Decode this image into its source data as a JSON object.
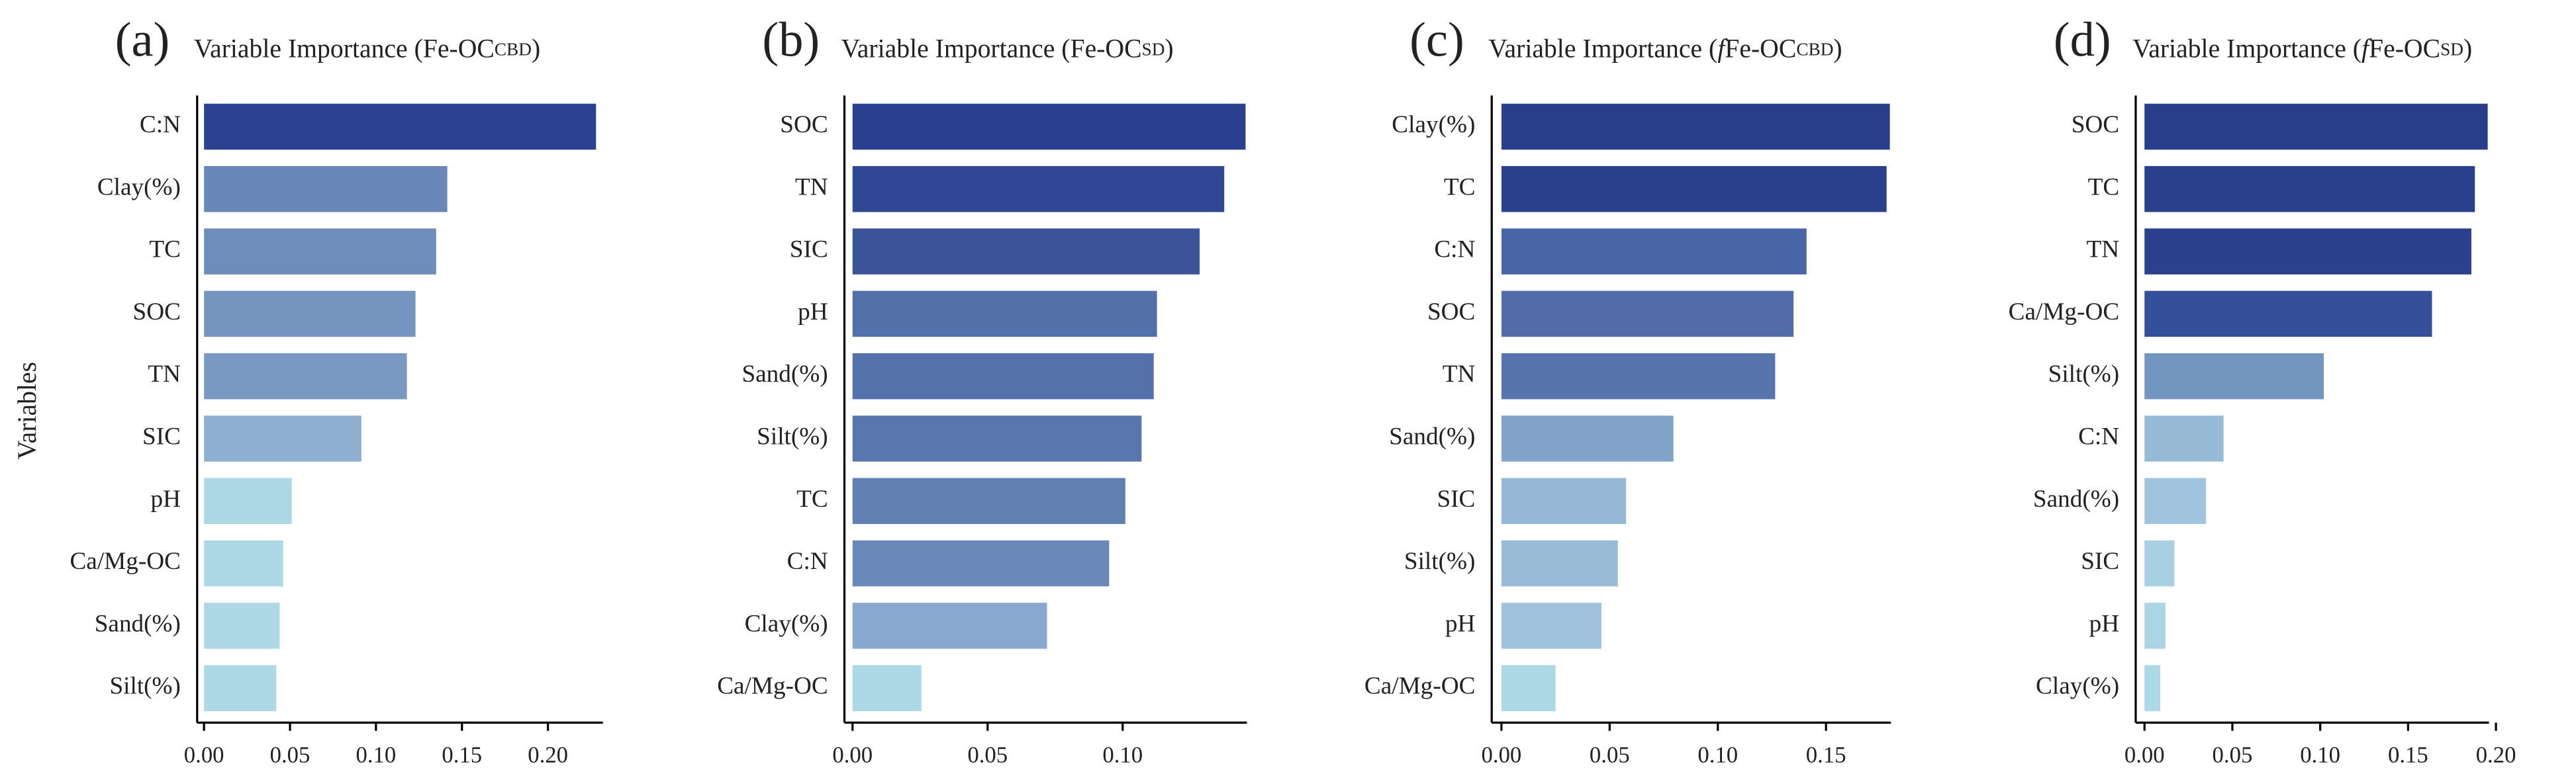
{
  "chart_data": [
    {
      "type": "bar",
      "orientation": "horizontal",
      "panel_label": "(a)",
      "title": [
        {
          "text": "Variable Importance (Fe-OC"
        },
        {
          "text": "CBD",
          "style": "sub"
        },
        {
          "text": ")"
        }
      ],
      "ylabel": "Variables",
      "categories": [
        "C:N",
        "Clay(%)",
        "TC",
        "SOC",
        "TN",
        "SIC",
        "pH",
        "Ca/Mg-OC",
        "Sand(%)",
        "Silt(%)"
      ],
      "values": [
        0.228,
        0.1415,
        0.135,
        0.123,
        0.118,
        0.0915,
        0.051,
        0.046,
        0.044,
        0.042
      ],
      "colors": [
        "#2b4290",
        "#6988b7",
        "#6f8dba",
        "#7594bf",
        "#7a99c2",
        "#8eafd0",
        "#acd7e5",
        "#aed8e6",
        "#aed8e6",
        "#aed8e6"
      ],
      "xlim": [
        -0.004,
        0.232
      ],
      "xticks": [
        {
          "value": 0,
          "label": "0.00"
        },
        {
          "value": 0.05,
          "label": "0.05"
        },
        {
          "value": 0.1,
          "label": "0.10"
        },
        {
          "value": 0.15,
          "label": "0.15"
        },
        {
          "value": 0.2,
          "label": "0.20"
        }
      ]
    },
    {
      "type": "bar",
      "orientation": "horizontal",
      "panel_label": "(b)",
      "title": [
        {
          "text": "Variable Importance (Fe-OC"
        },
        {
          "text": "SD",
          "style": "sub"
        },
        {
          "text": ")"
        }
      ],
      "categories": [
        "SOC",
        "TN",
        "SIC",
        "pH",
        "Sand(%)",
        "Silt(%)",
        "TC",
        "C:N",
        "Clay(%)",
        "Ca/Mg-OC"
      ],
      "values": [
        0.1455,
        0.1376,
        0.1285,
        0.1127,
        0.1115,
        0.107,
        0.101,
        0.095,
        0.072,
        0.0255
      ],
      "colors": [
        "#2a3f8f",
        "#2f4794",
        "#3a5399",
        "#5270aa",
        "#5471ab",
        "#5977ae",
        "#6281b3",
        "#6a89b8",
        "#88a9cd",
        "#add8e6"
      ],
      "xlim": [
        -0.003,
        0.146
      ],
      "xticks": [
        {
          "value": 0,
          "label": "0.00"
        },
        {
          "value": 0.05,
          "label": "0.05"
        },
        {
          "value": 0.1,
          "label": "0.10"
        }
      ]
    },
    {
      "type": "bar",
      "orientation": "horizontal",
      "panel_label": "(c)",
      "title": [
        {
          "text": "Variable Importance ("
        },
        {
          "text": "f",
          "style": "italic"
        },
        {
          "text": "Fe-OC"
        },
        {
          "text": "CBD",
          "style": "sub"
        },
        {
          "text": ")"
        }
      ],
      "categories": [
        "Clay(%)",
        "TC",
        "C:N",
        "SOC",
        "TN",
        "Sand(%)",
        "SIC",
        "Silt(%)",
        "pH",
        "Ca/Mg-OC"
      ],
      "values": [
        0.1795,
        0.178,
        0.141,
        0.135,
        0.1265,
        0.0795,
        0.0576,
        0.0538,
        0.0462,
        0.025
      ],
      "colors": [
        "#283e8b",
        "#2a408c",
        "#4b66a6",
        "#516ca9",
        "#5874ad",
        "#82a4ca",
        "#95b8d6",
        "#98bbd8",
        "#9fc3dc",
        "#add8e6"
      ],
      "xlim": [
        -0.0045,
        0.18
      ],
      "xticks": [
        {
          "value": 0,
          "label": "0.00"
        },
        {
          "value": 0.05,
          "label": "0.05"
        },
        {
          "value": 0.1,
          "label": "0.10"
        },
        {
          "value": 0.15,
          "label": "0.15"
        }
      ]
    },
    {
      "type": "bar",
      "orientation": "horizontal",
      "panel_label": "(d)",
      "title": [
        {
          "text": "Variable Importance ("
        },
        {
          "text": "f",
          "style": "italic"
        },
        {
          "text": "Fe-OC"
        },
        {
          "text": "SD",
          "style": "sub"
        },
        {
          "text": ")"
        }
      ],
      "categories": [
        "SOC",
        "TC",
        "TN",
        "Ca/Mg-OC",
        "Silt(%)",
        "C:N",
        "Sand(%)",
        "SIC",
        "pH",
        "Clay(%)"
      ],
      "values": [
        0.1953,
        0.188,
        0.186,
        0.1636,
        0.102,
        0.045,
        0.035,
        0.017,
        0.012,
        0.009
      ],
      "colors": [
        "#283e8b",
        "#2a408c",
        "#2b418d",
        "#35509a",
        "#7396c0",
        "#97bad7",
        "#a0c4dd",
        "#a8cfe2",
        "#abd4e4",
        "#add8e6"
      ],
      "xlim": [
        -0.005,
        0.196
      ],
      "xticks": [
        {
          "value": 0,
          "label": "0.00"
        },
        {
          "value": 0.05,
          "label": "0.05"
        },
        {
          "value": 0.1,
          "label": "0.10"
        },
        {
          "value": 0.15,
          "label": "0.15"
        },
        {
          "value": 0.2,
          "label": "0.20"
        }
      ]
    }
  ]
}
